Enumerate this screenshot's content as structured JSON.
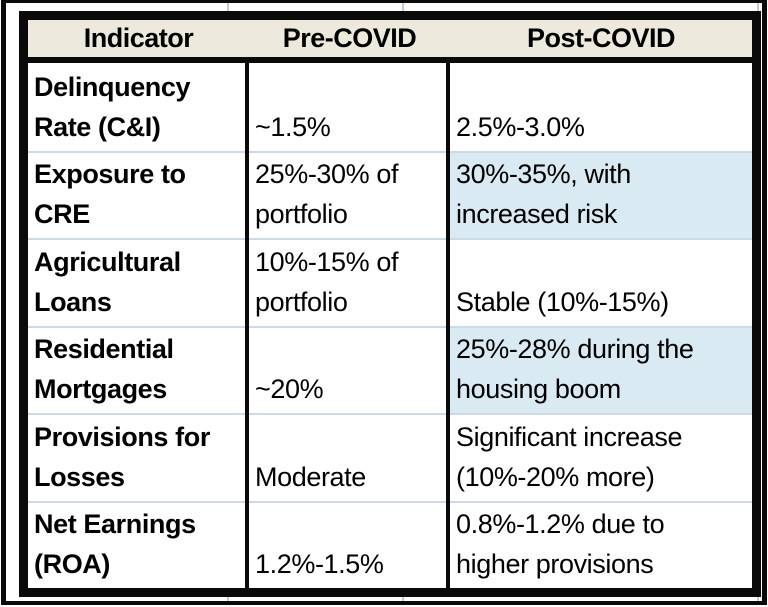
{
  "table": {
    "headers": [
      {
        "label": "Indicator"
      },
      {
        "label": "Pre-COVID"
      },
      {
        "label": "Post-COVID"
      }
    ],
    "rows": [
      {
        "indicator": "Delinquency\nRate (C&I)",
        "pre_covid": "~1.5%",
        "post_covid": "2.5%-3.0%",
        "post_highlight": false
      },
      {
        "indicator": "Exposure to CRE",
        "pre_covid": "25%-30% of\nportfolio",
        "post_covid": "30%-35%, with\nincreased risk",
        "post_highlight": true
      },
      {
        "indicator": "Agricultural\nLoans",
        "pre_covid": "10%-15% of\nportfolio",
        "post_covid": "Stable (10%-15%)",
        "post_highlight": false
      },
      {
        "indicator": "Residential\nMortgages",
        "pre_covid": "~20%",
        "post_covid": "25%-28% during the\nhousing boom",
        "post_highlight": true
      },
      {
        "indicator": "Provisions for\nLosses",
        "pre_covid": "Moderate",
        "post_covid": "Significant increase\n(10%-20% more)",
        "post_highlight": false
      },
      {
        "indicator": "Net Earnings\n(ROA)",
        "pre_covid": "1.2%-1.5%",
        "post_covid": "0.8%-1.2% due to\nhigher provisions",
        "post_highlight": false
      }
    ],
    "colors": {
      "header_bg": "#EDE9DC",
      "highlight_bg": "#DAEAF2",
      "border": "#0A0A0A",
      "row_divider": "#CFD9E6",
      "gridline": "#BFCCDE"
    }
  }
}
